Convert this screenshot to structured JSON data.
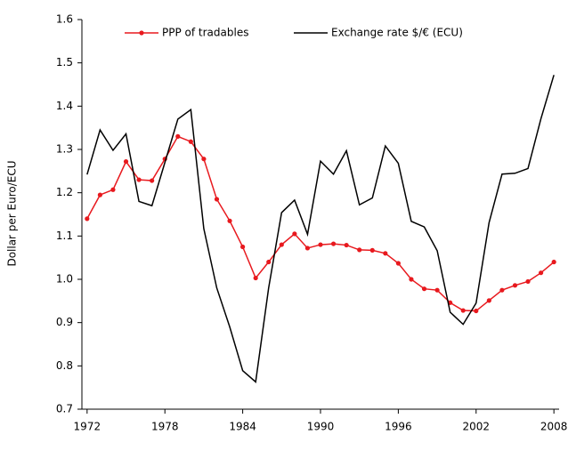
{
  "chart_data": {
    "type": "line",
    "y_label": "Dollar per Euro/ECU",
    "x": [
      1972,
      1973,
      1974,
      1975,
      1976,
      1977,
      1978,
      1979,
      1980,
      1981,
      1982,
      1983,
      1984,
      1985,
      1986,
      1987,
      1988,
      1989,
      1990,
      1991,
      1992,
      1993,
      1994,
      1995,
      1996,
      1997,
      1998,
      1999,
      2000,
      2001,
      2002,
      2003,
      2004,
      2005,
      2006,
      2007,
      2008
    ],
    "series": [
      {
        "name": "PPP of tradables",
        "color": "#e8191e",
        "markers": true,
        "values": [
          1.14,
          1.195,
          1.207,
          1.272,
          1.23,
          1.228,
          1.278,
          1.33,
          1.318,
          1.278,
          1.185,
          1.135,
          1.075,
          1.003,
          1.04,
          1.08,
          1.105,
          1.072,
          1.08,
          1.082,
          1.079,
          1.068,
          1.067,
          1.06,
          1.037,
          1.0,
          0.978,
          0.975,
          0.946,
          0.928,
          0.927,
          0.951,
          0.975,
          0.986,
          0.995,
          1.015,
          1.04
        ]
      },
      {
        "name": "Exchange rate $/€ (ECU)",
        "color": "#000000",
        "markers": false,
        "values": [
          1.242,
          1.345,
          1.298,
          1.336,
          1.18,
          1.17,
          1.27,
          1.37,
          1.392,
          1.117,
          0.98,
          0.89,
          0.789,
          0.763,
          0.98,
          1.154,
          1.183,
          1.104,
          1.273,
          1.243,
          1.297,
          1.172,
          1.188,
          1.308,
          1.268,
          1.134,
          1.121,
          1.066,
          0.924,
          0.896,
          0.945,
          1.131,
          1.243,
          1.245,
          1.256,
          1.371,
          1.472
        ]
      }
    ],
    "xlim": [
      1971.6,
      2008.4
    ],
    "xticks": [
      1972,
      1978,
      1984,
      1990,
      1996,
      2002,
      2008
    ],
    "ylim": [
      0.7,
      1.6
    ],
    "yticks": [
      0.7,
      0.8,
      0.9,
      {
        "value": 1,
        "label": "1.0"
      },
      1.1,
      1.2,
      1.3,
      1.4,
      1.5,
      1.6
    ],
    "grid": false
  }
}
